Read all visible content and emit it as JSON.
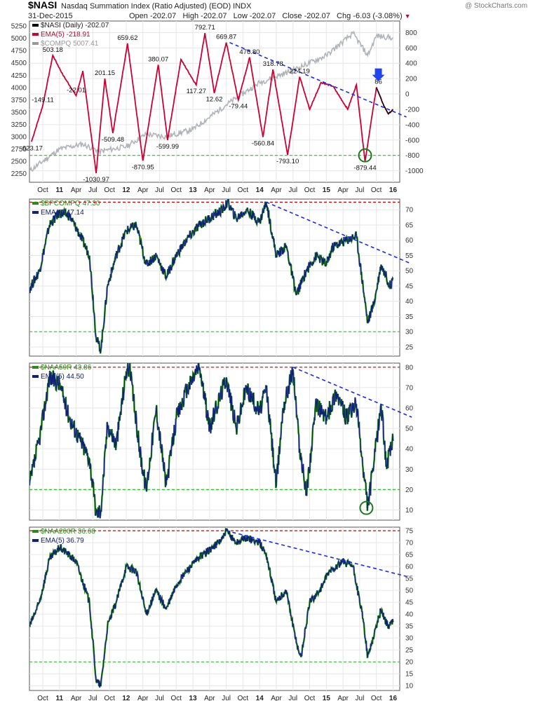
{
  "header": {
    "symbol": "$NASI",
    "description": "Nasdaq Summation Index (Ratio Adjusted) (EOD)  INDX",
    "date": "31-Dec-2015",
    "open_label": "Open",
    "open": "-202.07",
    "high_label": "High",
    "high": "-202.07",
    "low_label": "Low",
    "low": "-202.07",
    "close_label": "Close",
    "close": "-202.07",
    "chg_label": "Chg",
    "chg": "-6.03 (-3.08%)",
    "logo": "@ StockCharts.com"
  },
  "colors": {
    "nasi": "#cc0033",
    "nasi_tail": "#000000",
    "compq": "#b0b4b8",
    "ema": "#10207a",
    "breadth": "#2a8a1a",
    "trend": "#1a2aee",
    "support": "#22cc22",
    "resist": "#cc0000",
    "marker": "#2244ee",
    "circle": "#1a7a1a"
  },
  "x_axis": {
    "ticks": [
      {
        "label": "Oct",
        "t": 2010.75,
        "year": false
      },
      {
        "label": "11",
        "t": 2011.0,
        "year": true
      },
      {
        "label": "Apr",
        "t": 2011.25,
        "year": false
      },
      {
        "label": "Jul",
        "t": 2011.5,
        "year": false
      },
      {
        "label": "Oct",
        "t": 2011.75,
        "year": false
      },
      {
        "label": "12",
        "t": 2012.0,
        "year": true
      },
      {
        "label": "Apr",
        "t": 2012.25,
        "year": false
      },
      {
        "label": "Jul",
        "t": 2012.5,
        "year": false
      },
      {
        "label": "Oct",
        "t": 2012.75,
        "year": false
      },
      {
        "label": "13",
        "t": 2013.0,
        "year": true
      },
      {
        "label": "Apr",
        "t": 2013.25,
        "year": false
      },
      {
        "label": "Jul",
        "t": 2013.5,
        "year": false
      },
      {
        "label": "Oct",
        "t": 2013.75,
        "year": false
      },
      {
        "label": "14",
        "t": 2014.0,
        "year": true
      },
      {
        "label": "Apr",
        "t": 2014.25,
        "year": false
      },
      {
        "label": "Jul",
        "t": 2014.5,
        "year": false
      },
      {
        "label": "Oct",
        "t": 2014.75,
        "year": false
      },
      {
        "label": "15",
        "t": 2015.0,
        "year": true
      },
      {
        "label": "Apr",
        "t": 2015.25,
        "year": false
      },
      {
        "label": "Jul",
        "t": 2015.5,
        "year": false
      },
      {
        "label": "Oct",
        "t": 2015.75,
        "year": false
      },
      {
        "label": "16",
        "t": 2016.0,
        "year": true
      }
    ]
  },
  "chart_data": [
    {
      "type": "line",
      "legend": [
        {
          "text": "$NASI (Daily) -202.07",
          "color": "#000000"
        },
        {
          "text": "EMA(5) -218.91",
          "color": "#cc0033"
        },
        {
          "text": "$COMPQ 5007.41",
          "color": "#999999"
        }
      ],
      "y_left": {
        "ticks": [
          2250,
          2500,
          2750,
          3000,
          3250,
          3500,
          3750,
          4000,
          4250,
          4500,
          4750,
          5000,
          5250
        ],
        "range": [
          2075,
          5350
        ]
      },
      "y_right": {
        "ticks": [
          800,
          600,
          400,
          200,
          0,
          -200,
          -400,
          -600,
          -800,
          -1000
        ],
        "range": [
          -1150,
          950
        ]
      },
      "support_level": -800,
      "nasi_points": [
        [
          2010.58,
          -623.17
        ],
        [
          2010.75,
          -149.11
        ],
        [
          2010.9,
          503.18
        ],
        [
          2011.05,
          250
        ],
        [
          2011.25,
          -22.01
        ],
        [
          2011.35,
          300
        ],
        [
          2011.55,
          -1030.97
        ],
        [
          2011.68,
          201.15
        ],
        [
          2011.8,
          -509.48
        ],
        [
          2012.02,
          659.62
        ],
        [
          2012.25,
          -870.95
        ],
        [
          2012.48,
          380.07
        ],
        [
          2012.62,
          -599.99
        ],
        [
          2012.82,
          450
        ],
        [
          2013.05,
          117.27
        ],
        [
          2013.18,
          792.71
        ],
        [
          2013.32,
          12.62
        ],
        [
          2013.5,
          669.87
        ],
        [
          2013.68,
          -79.44
        ],
        [
          2013.85,
          476.8
        ],
        [
          2014.05,
          -560.84
        ],
        [
          2014.2,
          318.78
        ],
        [
          2014.42,
          -793.1
        ],
        [
          2014.6,
          224.19
        ],
        [
          2014.75,
          -200
        ],
        [
          2014.92,
          150
        ],
        [
          2015.1,
          100
        ],
        [
          2015.32,
          -200
        ],
        [
          2015.45,
          120
        ],
        [
          2015.58,
          -879.44
        ],
        [
          2015.75,
          86
        ],
        [
          2015.86,
          -150
        ],
        [
          2015.93,
          -260
        ],
        [
          2016.0,
          -202.07
        ]
      ],
      "compq_points": [
        [
          2010.55,
          2300
        ],
        [
          2011.0,
          2750
        ],
        [
          2011.35,
          2850
        ],
        [
          2011.6,
          2700
        ],
        [
          2012.0,
          2800
        ],
        [
          2012.3,
          3050
        ],
        [
          2012.6,
          3000
        ],
        [
          2013.0,
          3150
        ],
        [
          2013.5,
          3650
        ],
        [
          2014.0,
          4100
        ],
        [
          2014.5,
          4350
        ],
        [
          2015.0,
          4650
        ],
        [
          2015.4,
          5100
        ],
        [
          2015.62,
          4650
        ],
        [
          2015.75,
          5050
        ],
        [
          2016.0,
          5007.41
        ]
      ],
      "trendline": [
        [
          2013.55,
          669.87
        ],
        [
          2016.2,
          -300
        ]
      ],
      "peak_labels": [
        {
          "text": "792.71",
          "t": 2013.18,
          "v": 792.71,
          "pos": "above"
        },
        {
          "text": "669.87",
          "t": 2013.5,
          "v": 669.87,
          "pos": "above"
        },
        {
          "text": "659.62",
          "t": 2012.02,
          "v": 659.62,
          "pos": "above"
        },
        {
          "text": "503.18",
          "t": 2010.9,
          "v": 503.18,
          "pos": "above"
        },
        {
          "text": "476.80",
          "t": 2013.85,
          "v": 476.8,
          "pos": "above"
        },
        {
          "text": "380.07",
          "t": 2012.48,
          "v": 380.07,
          "pos": "above"
        },
        {
          "text": "318.78",
          "t": 2014.2,
          "v": 318.78,
          "pos": "above"
        },
        {
          "text": "224.19",
          "t": 2014.6,
          "v": 224.19,
          "pos": "above"
        },
        {
          "text": "201.15",
          "t": 2011.68,
          "v": 201.15,
          "pos": "above"
        },
        {
          "text": "117.27",
          "t": 2013.05,
          "v": 117.27,
          "pos": "below"
        },
        {
          "text": "12.62",
          "t": 2013.32,
          "v": 12.62,
          "pos": "below"
        },
        {
          "text": "86",
          "t": 2015.78,
          "v": 86,
          "pos": "above"
        },
        {
          "text": "-22.01",
          "t": 2011.25,
          "v": -22.01,
          "pos": "above"
        },
        {
          "text": "-79.44",
          "t": 2013.68,
          "v": -79.44,
          "pos": "below"
        },
        {
          "text": "-149.11",
          "t": 2010.75,
          "v": -149.11,
          "pos": "above"
        },
        {
          "text": "-509.48",
          "t": 2011.8,
          "v": -509.48,
          "pos": "below"
        },
        {
          "text": "-560.84",
          "t": 2014.05,
          "v": -560.84,
          "pos": "below"
        },
        {
          "text": "-599.99",
          "t": 2012.62,
          "v": -599.99,
          "pos": "below"
        },
        {
          "text": "-623.17",
          "t": 2010.58,
          "v": -623.17,
          "pos": "below"
        },
        {
          "text": "-793.10",
          "t": 2014.42,
          "v": -793.1,
          "pos": "below"
        },
        {
          "text": "-870.95",
          "t": 2012.25,
          "v": -870.95,
          "pos": "below"
        },
        {
          "text": "-879.44",
          "t": 2015.58,
          "v": -879.44,
          "pos": "below"
        },
        {
          "text": "-1030.97",
          "t": 2011.55,
          "v": -1030.97,
          "pos": "below"
        }
      ],
      "circle_marker": {
        "t": 2015.58,
        "v": -800
      },
      "arrow_marker": {
        "t": 2015.78,
        "v": 150
      }
    },
    {
      "type": "line",
      "legend": [
        {
          "text": "$BPCOMPQ 47.30",
          "color": "#2a8a1a"
        },
        {
          "text": "EMA(5) 47.14",
          "color": "#10207a"
        }
      ],
      "y_right": {
        "ticks": [
          70,
          65,
          60,
          55,
          50,
          45,
          40,
          35,
          30,
          25
        ],
        "range": [
          22,
          73.5
        ]
      },
      "resistance_level": 72.5,
      "support_level": 30,
      "points": [
        [
          2010.55,
          44
        ],
        [
          2010.7,
          50
        ],
        [
          2010.85,
          65
        ],
        [
          2011.0,
          69
        ],
        [
          2011.15,
          68
        ],
        [
          2011.3,
          62
        ],
        [
          2011.45,
          55
        ],
        [
          2011.55,
          28
        ],
        [
          2011.62,
          24
        ],
        [
          2011.72,
          45
        ],
        [
          2011.85,
          55
        ],
        [
          2012.0,
          63
        ],
        [
          2012.15,
          65
        ],
        [
          2012.3,
          52
        ],
        [
          2012.45,
          55
        ],
        [
          2012.6,
          48
        ],
        [
          2012.75,
          55
        ],
        [
          2012.9,
          60
        ],
        [
          2013.1,
          65
        ],
        [
          2013.3,
          68
        ],
        [
          2013.45,
          70
        ],
        [
          2013.52,
          72.5
        ],
        [
          2013.65,
          67
        ],
        [
          2013.8,
          70
        ],
        [
          2014.0,
          66
        ],
        [
          2014.1,
          72.5
        ],
        [
          2014.25,
          55
        ],
        [
          2014.4,
          58
        ],
        [
          2014.55,
          42
        ],
        [
          2014.7,
          50
        ],
        [
          2014.85,
          55
        ],
        [
          2015.0,
          52
        ],
        [
          2015.1,
          58
        ],
        [
          2015.3,
          60
        ],
        [
          2015.45,
          61.5
        ],
        [
          2015.55,
          45
        ],
        [
          2015.62,
          33
        ],
        [
          2015.72,
          40
        ],
        [
          2015.82,
          52
        ],
        [
          2015.9,
          48
        ],
        [
          2015.95,
          45
        ],
        [
          2016.0,
          47.3
        ]
      ],
      "trendline": [
        [
          2014.1,
          72.5
        ],
        [
          2016.25,
          52.5
        ]
      ]
    },
    {
      "type": "line",
      "legend": [
        {
          "text": "$NAA50R 43.86",
          "color": "#2a8a1a"
        },
        {
          "text": "EMA(5) 44.50",
          "color": "#10207a"
        }
      ],
      "y_right": {
        "ticks": [
          80,
          70,
          60,
          50,
          40,
          30,
          20,
          10
        ],
        "range": [
          5,
          82
        ]
      },
      "resistance_level": 80,
      "support_level": 20,
      "points": [
        [
          2010.55,
          22
        ],
        [
          2010.7,
          45
        ],
        [
          2010.85,
          75
        ],
        [
          2011.0,
          72
        ],
        [
          2011.15,
          55
        ],
        [
          2011.3,
          45
        ],
        [
          2011.45,
          35
        ],
        [
          2011.55,
          8
        ],
        [
          2011.62,
          10
        ],
        [
          2011.72,
          52
        ],
        [
          2011.85,
          42
        ],
        [
          2012.0,
          78
        ],
        [
          2012.05,
          80
        ],
        [
          2012.2,
          40
        ],
        [
          2012.3,
          20
        ],
        [
          2012.45,
          60
        ],
        [
          2012.6,
          22
        ],
        [
          2012.75,
          55
        ],
        [
          2012.9,
          68
        ],
        [
          2013.05,
          78
        ],
        [
          2013.1,
          80
        ],
        [
          2013.25,
          50
        ],
        [
          2013.35,
          60
        ],
        [
          2013.5,
          75
        ],
        [
          2013.65,
          50
        ],
        [
          2013.8,
          70
        ],
        [
          2014.0,
          58
        ],
        [
          2014.1,
          70
        ],
        [
          2014.25,
          22
        ],
        [
          2014.35,
          60
        ],
        [
          2014.5,
          79
        ],
        [
          2014.6,
          40
        ],
        [
          2014.7,
          18
        ],
        [
          2014.85,
          62
        ],
        [
          2015.0,
          55
        ],
        [
          2015.15,
          68
        ],
        [
          2015.3,
          55
        ],
        [
          2015.45,
          62
        ],
        [
          2015.55,
          30
        ],
        [
          2015.62,
          12
        ],
        [
          2015.72,
          35
        ],
        [
          2015.82,
          62
        ],
        [
          2015.9,
          32
        ],
        [
          2016.0,
          43.86
        ]
      ],
      "trendline": [
        [
          2014.5,
          80
        ],
        [
          2016.28,
          55.5
        ]
      ],
      "circle_marker": {
        "t": 2015.6,
        "v": 11
      }
    },
    {
      "type": "line",
      "legend": [
        {
          "text": "$NAA200R 36.68",
          "color": "#2a8a1a"
        },
        {
          "text": "EMA(5) 36.79",
          "color": "#10207a"
        }
      ],
      "y_right": {
        "ticks": [
          75,
          70,
          65,
          60,
          55,
          50,
          45,
          40,
          35,
          30,
          25,
          20,
          15,
          10
        ],
        "range": [
          8,
          76.5
        ]
      },
      "resistance_level": 75,
      "support_level": 20,
      "points": [
        [
          2010.55,
          35
        ],
        [
          2010.7,
          45
        ],
        [
          2010.85,
          63
        ],
        [
          2011.0,
          68
        ],
        [
          2011.1,
          66
        ],
        [
          2011.25,
          62
        ],
        [
          2011.45,
          45
        ],
        [
          2011.55,
          12
        ],
        [
          2011.62,
          10
        ],
        [
          2011.72,
          35
        ],
        [
          2011.85,
          45
        ],
        [
          2012.0,
          60
        ],
        [
          2012.15,
          58
        ],
        [
          2012.3,
          40
        ],
        [
          2012.45,
          50
        ],
        [
          2012.6,
          42
        ],
        [
          2012.75,
          52
        ],
        [
          2012.9,
          58
        ],
        [
          2013.1,
          64
        ],
        [
          2013.3,
          68
        ],
        [
          2013.45,
          72
        ],
        [
          2013.5,
          75
        ],
        [
          2013.65,
          70
        ],
        [
          2013.8,
          72
        ],
        [
          2014.0,
          70
        ],
        [
          2014.1,
          65
        ],
        [
          2014.25,
          45
        ],
        [
          2014.4,
          50
        ],
        [
          2014.55,
          28
        ],
        [
          2014.62,
          22
        ],
        [
          2014.75,
          45
        ],
        [
          2014.9,
          50
        ],
        [
          2015.05,
          58
        ],
        [
          2015.25,
          62
        ],
        [
          2015.4,
          60
        ],
        [
          2015.55,
          38
        ],
        [
          2015.62,
          22
        ],
        [
          2015.72,
          32
        ],
        [
          2015.82,
          42
        ],
        [
          2015.92,
          35
        ],
        [
          2016.0,
          36.68
        ]
      ],
      "trendline": [
        [
          2013.5,
          75
        ],
        [
          2016.25,
          55.5
        ]
      ]
    }
  ]
}
